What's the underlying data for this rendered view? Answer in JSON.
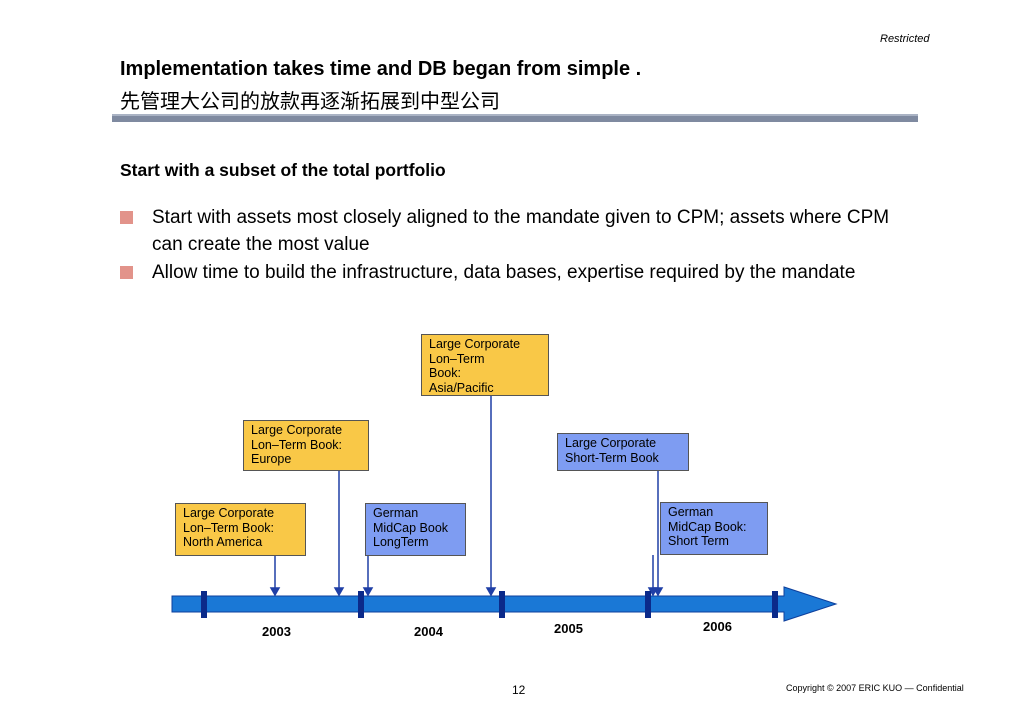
{
  "header": {
    "restricted": "Restricted",
    "title_en": "Implementation takes time and DB began from simple .",
    "title_zh": "先管理大公司的放款再逐渐拓展到中型公司"
  },
  "content": {
    "subhead": "Start with a subset of the total portfolio",
    "bullets": [
      "Start with assets most closely aligned to the mandate given to CPM; assets where CPM can create the most value",
      "Allow time to build the infrastructure, data bases, expertise required by the mandate"
    ]
  },
  "timeline": {
    "boxes": [
      {
        "lines": [
          "Large Corporate",
          "Lon–Term",
          "Book:",
          "Asia/Pacific"
        ],
        "color": "#f9c847"
      },
      {
        "lines": [
          "Large Corporate",
          "Lon–Term Book:",
          "Europe"
        ],
        "color": "#f9c847"
      },
      {
        "lines": [
          "Large Corporate",
          "Short-Term Book"
        ],
        "color": "#7e9cf2"
      },
      {
        "lines": [
          "Large Corporate",
          "Lon–Term Book:",
          "North America"
        ],
        "color": "#f9c847"
      },
      {
        "lines": [
          "German",
          "MidCap Book",
          "LongTerm"
        ],
        "color": "#7e9cf2"
      },
      {
        "lines": [
          "German",
          "MidCap Book:",
          "Short Term"
        ],
        "color": "#7e9cf2"
      }
    ],
    "years": [
      "2003",
      "2004",
      "2005",
      "2006"
    ],
    "arrow_color": "#1a78d6"
  },
  "footer": {
    "page_number": "12",
    "copyright": "Copyright © 2007 ERIC KUO — Confidential"
  }
}
